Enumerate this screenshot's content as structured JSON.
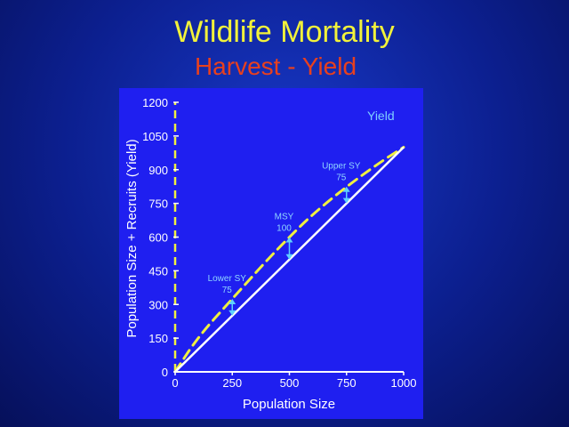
{
  "header": {
    "title": "Wildlife Mortality",
    "subtitle": "Harvest - Yield"
  },
  "colors": {
    "title": "#f2f23a",
    "subtitle": "#e8401e",
    "panel": "#1f1ff0",
    "yield_curve": "#f0f040",
    "replacement_line": "#ffffff",
    "arrow": "#5fd0ff"
  },
  "chart_data": {
    "type": "line",
    "xlabel": "Population Size",
    "ylabel": "Population Size + Recruits (Yield)",
    "xlim": [
      0,
      1000
    ],
    "ylim": [
      0,
      1200
    ],
    "x_ticks": [
      "0",
      "250",
      "500",
      "750",
      "1000"
    ],
    "y_ticks": [
      "0",
      "150",
      "300",
      "450",
      "600",
      "750",
      "900",
      "1050",
      "1200"
    ],
    "legend": [
      "Yield"
    ],
    "series": [
      {
        "name": "Yield",
        "style": "dashed",
        "x": [
          0,
          100,
          250,
          400,
          500,
          600,
          750,
          900,
          1000
        ],
        "y": [
          0,
          155,
          325,
          495,
          600,
          700,
          825,
          935,
          1000
        ]
      },
      {
        "style": "solid",
        "x": [
          0,
          1000
        ],
        "y": [
          0,
          1000
        ]
      }
    ],
    "annotations": [
      {
        "label": "Lower SY",
        "value": "75",
        "x": 250,
        "y_from": 250,
        "y_to": 325
      },
      {
        "label": "MSY",
        "value": "100",
        "x": 500,
        "y_from": 500,
        "y_to": 600
      },
      {
        "label": "Upper SY",
        "value": "75",
        "x": 750,
        "y_from": 750,
        "y_to": 825
      }
    ]
  }
}
